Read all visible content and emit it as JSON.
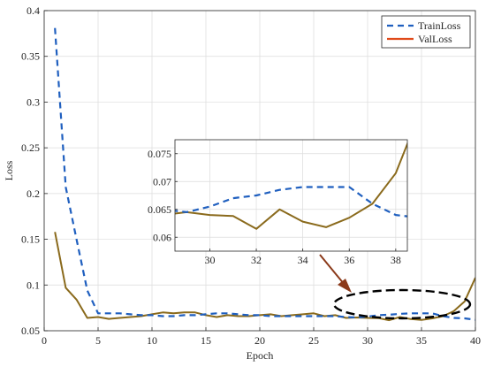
{
  "chart_data": {
    "type": "line",
    "xlabel": "Epoch",
    "ylabel": "Loss",
    "xlim": [
      0,
      40
    ],
    "ylim": [
      0.05,
      0.4
    ],
    "xticks": [
      0,
      5,
      10,
      15,
      20,
      25,
      30,
      35,
      40
    ],
    "yticks": [
      0.05,
      0.1,
      0.15,
      0.2,
      0.25,
      0.3,
      0.35,
      0.4
    ],
    "ytick_labels": [
      "0.05",
      "0.1",
      "0.15",
      "0.2",
      "0.25",
      "0.3",
      "0.35",
      "0.4"
    ],
    "grid": true,
    "legend_position": "top-right",
    "series": [
      {
        "name": "TrainLoss",
        "style": "dashed",
        "color": "#1f5fbf",
        "x": [
          1,
          2,
          3,
          4,
          5,
          6,
          7,
          8,
          9,
          10,
          11,
          12,
          13,
          14,
          15,
          16,
          17,
          18,
          19,
          20,
          21,
          22,
          23,
          24,
          25,
          26,
          27,
          28,
          29,
          30,
          31,
          32,
          33,
          34,
          35,
          36,
          37,
          38,
          39,
          40
        ],
        "y": [
          0.381,
          0.207,
          0.15,
          0.094,
          0.069,
          0.069,
          0.069,
          0.068,
          0.067,
          0.067,
          0.066,
          0.066,
          0.067,
          0.067,
          0.068,
          0.069,
          0.069,
          0.068,
          0.067,
          0.067,
          0.066,
          0.066,
          0.066,
          0.066,
          0.066,
          0.066,
          0.066,
          0.065,
          0.0645,
          0.0655,
          0.067,
          0.0675,
          0.0685,
          0.069,
          0.069,
          0.069,
          0.066,
          0.064,
          0.0635,
          0.062
        ]
      },
      {
        "name": "ValLoss",
        "style": "solid",
        "color": "#e04a1a",
        "x": [
          1,
          2,
          3,
          4,
          5,
          6,
          7,
          8,
          9,
          10,
          11,
          12,
          13,
          14,
          15,
          16,
          17,
          18,
          19,
          20,
          21,
          22,
          23,
          24,
          25,
          26,
          27,
          28,
          29,
          30,
          31,
          32,
          33,
          34,
          35,
          36,
          37,
          38,
          39,
          40
        ],
        "y": [
          0.158,
          0.097,
          0.084,
          0.064,
          0.065,
          0.063,
          0.064,
          0.065,
          0.066,
          0.068,
          0.07,
          0.069,
          0.07,
          0.07,
          0.067,
          0.065,
          0.067,
          0.066,
          0.066,
          0.067,
          0.068,
          0.066,
          0.067,
          0.068,
          0.069,
          0.066,
          0.067,
          0.064,
          0.0645,
          0.064,
          0.0638,
          0.0615,
          0.065,
          0.0628,
          0.0618,
          0.0635,
          0.066,
          0.0715,
          0.082,
          0.108
        ]
      }
    ],
    "inset": {
      "xlim": [
        28.5,
        38.5
      ],
      "ylim": [
        0.0575,
        0.0775
      ],
      "xticks": [
        30,
        32,
        34,
        36,
        38
      ],
      "yticks": [
        0.06,
        0.065,
        0.07,
        0.075
      ],
      "ytick_labels": [
        "0.06",
        "0.065",
        "0.07",
        "0.075"
      ]
    }
  }
}
